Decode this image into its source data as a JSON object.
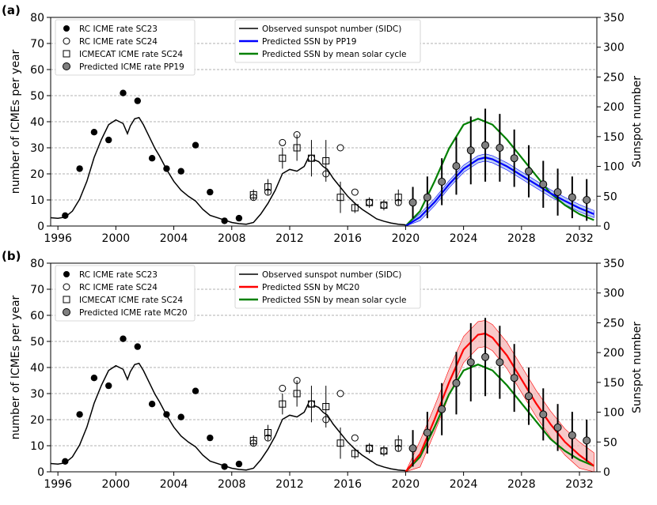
{
  "chart_data": [
    {
      "type": "scatter",
      "panel_label": "(a)",
      "xlim": [
        1995.5,
        2033.2
      ],
      "ylim_left": [
        0,
        80
      ],
      "ylim_right": [
        0,
        350
      ],
      "ylabel_left": "number of ICMEs per year",
      "ylabel_right": "Sunspot number",
      "xticks": [
        "1996",
        "2000",
        "2004",
        "2008",
        "2012",
        "2016",
        "2020",
        "2024",
        "2028",
        "2032"
      ],
      "xtick_values": [
        1996,
        2000,
        2004,
        2008,
        2012,
        2016,
        2020,
        2024,
        2028,
        2032
      ],
      "yticks_left": [
        "0",
        "10",
        "20",
        "30",
        "40",
        "50",
        "60",
        "70",
        "80"
      ],
      "yticks_right": [
        "0",
        "50",
        "100",
        "150",
        "200",
        "250",
        "300",
        "350"
      ],
      "legend_left": [
        {
          "label": "RC ICME rate SC23",
          "marker": "filled-circle"
        },
        {
          "label": "RC ICME rate SC24",
          "marker": "open-circle"
        },
        {
          "label": "ICMECAT ICME rate SC24",
          "marker": "open-square"
        },
        {
          "label": "Predicted ICME rate PP19",
          "marker": "grey-circle"
        }
      ],
      "legend_right": [
        {
          "label": "Observed sunspot number (SIDC)",
          "color": "#000000"
        },
        {
          "label": "Predicted SSN by PP19",
          "color": "#0000ff"
        },
        {
          "label": "Predicted SSN by mean solar cycle",
          "color": "#008000"
        }
      ],
      "predicted_color": "#0000ff",
      "band_color": "#aac4f0",
      "predicted_ssn": {
        "x": [
          2020.0,
          2021.0,
          2022.0,
          2023.0,
          2024.0,
          2025.0,
          2025.5,
          2026.0,
          2027.0,
          2028.0,
          2029.0,
          2030.0,
          2031.0,
          2032.0,
          2033.0
        ],
        "y": [
          0,
          15,
          40,
          70,
          96,
          112,
          115,
          112,
          100,
          85,
          70,
          55,
          42,
          30,
          20
        ]
      },
      "predicted_band_halfwidth": 6,
      "predicted_rate": {
        "x": [
          2020.5,
          2021.5,
          2022.5,
          2023.5,
          2024.5,
          2025.5,
          2026.5,
          2027.5,
          2028.5,
          2029.5,
          2030.5,
          2031.5,
          2032.5
        ],
        "y": [
          9,
          11,
          17,
          23,
          29,
          31,
          30,
          26,
          21,
          16,
          13,
          11,
          10
        ],
        "err": [
          6,
          8,
          9,
          11,
          13,
          14,
          13,
          11,
          10,
          9,
          9,
          8,
          8
        ]
      }
    },
    {
      "type": "scatter",
      "panel_label": "(b)",
      "xlim": [
        1995.5,
        2033.2
      ],
      "ylim_left": [
        0,
        80
      ],
      "ylim_right": [
        0,
        350
      ],
      "ylabel_left": "number of ICMEs per year",
      "ylabel_right": "Sunspot number",
      "xticks": [
        "1996",
        "2000",
        "2004",
        "2008",
        "2012",
        "2016",
        "2020",
        "2024",
        "2028",
        "2032"
      ],
      "xtick_values": [
        1996,
        2000,
        2004,
        2008,
        2012,
        2016,
        2020,
        2024,
        2028,
        2032
      ],
      "yticks_left": [
        "0",
        "10",
        "20",
        "30",
        "40",
        "50",
        "60",
        "70",
        "80"
      ],
      "yticks_right": [
        "0",
        "50",
        "100",
        "150",
        "200",
        "250",
        "300",
        "350"
      ],
      "legend_left": [
        {
          "label": "RC ICME rate SC23",
          "marker": "filled-circle"
        },
        {
          "label": "RC ICME rate SC24",
          "marker": "open-circle"
        },
        {
          "label": "ICMECAT ICME rate SC24",
          "marker": "open-square"
        },
        {
          "label": "Predicted ICME rate MC20",
          "marker": "grey-circle"
        }
      ],
      "legend_right": [
        {
          "label": "Observed sunspot number (SIDC)",
          "color": "#000000"
        },
        {
          "label": "Predicted SSN by MC20",
          "color": "#ff0000"
        },
        {
          "label": "Predicted SSN by mean solar cycle",
          "color": "#008000"
        }
      ],
      "predicted_color": "#ff0000",
      "band_color": "#f5b5b5",
      "predicted_ssn": {
        "x": [
          2020.0,
          2021.0,
          2022.0,
          2023.0,
          2024.0,
          2025.0,
          2025.5,
          2026.0,
          2027.0,
          2028.0,
          2029.0,
          2030.0,
          2031.0,
          2032.0,
          2033.0
        ],
        "y": [
          0,
          30,
          88,
          150,
          205,
          230,
          232,
          225,
          195,
          155,
          115,
          80,
          50,
          28,
          10
        ]
      },
      "predicted_band_halfwidth": 22,
      "predicted_rate": {
        "x": [
          2020.5,
          2021.5,
          2022.5,
          2023.5,
          2024.5,
          2025.5,
          2026.5,
          2027.5,
          2028.5,
          2029.5,
          2030.5,
          2031.5,
          2032.5
        ],
        "y": [
          9,
          15,
          24,
          34,
          42,
          44,
          42,
          36,
          29,
          22,
          17,
          14,
          12
        ],
        "err": [
          7,
          8,
          10,
          12,
          15,
          15,
          14,
          13,
          11,
          10,
          9,
          9,
          8
        ]
      }
    }
  ],
  "shared_series": {
    "rc_sc23": {
      "x": [
        1996.5,
        1997.5,
        1998.5,
        1999.5,
        2000.5,
        2001.5,
        2002.5,
        2003.5,
        2004.5,
        2005.5,
        2006.5,
        2007.5,
        2008.5
      ],
      "y": [
        4,
        22,
        36,
        33,
        51,
        48,
        26,
        22,
        21,
        31,
        13,
        2,
        3
      ]
    },
    "rc_sc24": {
      "x": [
        2009.5,
        2010.5,
        2011.5,
        2012.5,
        2013.5,
        2014.5,
        2015.5,
        2016.5,
        2017.5,
        2018.5,
        2019.5
      ],
      "y": [
        11,
        13,
        32,
        35,
        26,
        20,
        30,
        13,
        9,
        8,
        9
      ]
    },
    "icmecat_sc24": {
      "x": [
        2009.5,
        2010.5,
        2011.5,
        2012.5,
        2013.5,
        2014.5,
        2015.5,
        2016.5,
        2017.5,
        2018.5,
        2019.5
      ],
      "y": [
        12,
        15,
        26,
        30,
        26,
        25,
        11,
        7,
        9,
        8,
        11
      ],
      "err": [
        2,
        3,
        4,
        5,
        7,
        8,
        6,
        2,
        2,
        2,
        3
      ]
    },
    "observed_ssn": {
      "x": [
        1995.5,
        1996.0,
        1996.5,
        1997.0,
        1997.5,
        1998.0,
        1998.5,
        1999.0,
        1999.5,
        2000.0,
        2000.5,
        2000.8,
        2001.0,
        2001.3,
        2001.6,
        2001.9,
        2002.3,
        2002.7,
        2003.0,
        2003.5,
        2004.0,
        2004.5,
        2005.0,
        2005.5,
        2006.0,
        2006.5,
        2007.0,
        2007.5,
        2008.0,
        2008.5,
        2009.0,
        2009.5,
        2010.0,
        2010.5,
        2011.0,
        2011.5,
        2012.0,
        2012.5,
        2013.0,
        2013.3,
        2013.6,
        2014.0,
        2014.3,
        2014.6,
        2015.0,
        2015.5,
        2016.0,
        2016.5,
        2017.0,
        2017.5,
        2018.0,
        2018.5,
        2019.0,
        2019.5,
        2020.0
      ],
      "y": [
        14,
        13,
        15,
        25,
        45,
        75,
        115,
        145,
        170,
        178,
        172,
        155,
        168,
        180,
        182,
        170,
        150,
        130,
        118,
        95,
        75,
        60,
        50,
        42,
        28,
        18,
        14,
        10,
        6,
        4,
        3,
        6,
        20,
        38,
        60,
        88,
        95,
        92,
        100,
        115,
        112,
        108,
        100,
        95,
        80,
        65,
        50,
        38,
        28,
        20,
        12,
        8,
        5,
        3,
        2
      ]
    },
    "mean_cycle_ssn": {
      "x": [
        2020.0,
        2021.0,
        2022.0,
        2023.0,
        2024.0,
        2025.0,
        2026.0,
        2027.0,
        2028.0,
        2029.0,
        2030.0,
        2031.0,
        2032.0,
        2033.0
      ],
      "y": [
        0,
        25,
        75,
        130,
        170,
        180,
        170,
        145,
        115,
        85,
        55,
        35,
        20,
        10
      ]
    }
  }
}
